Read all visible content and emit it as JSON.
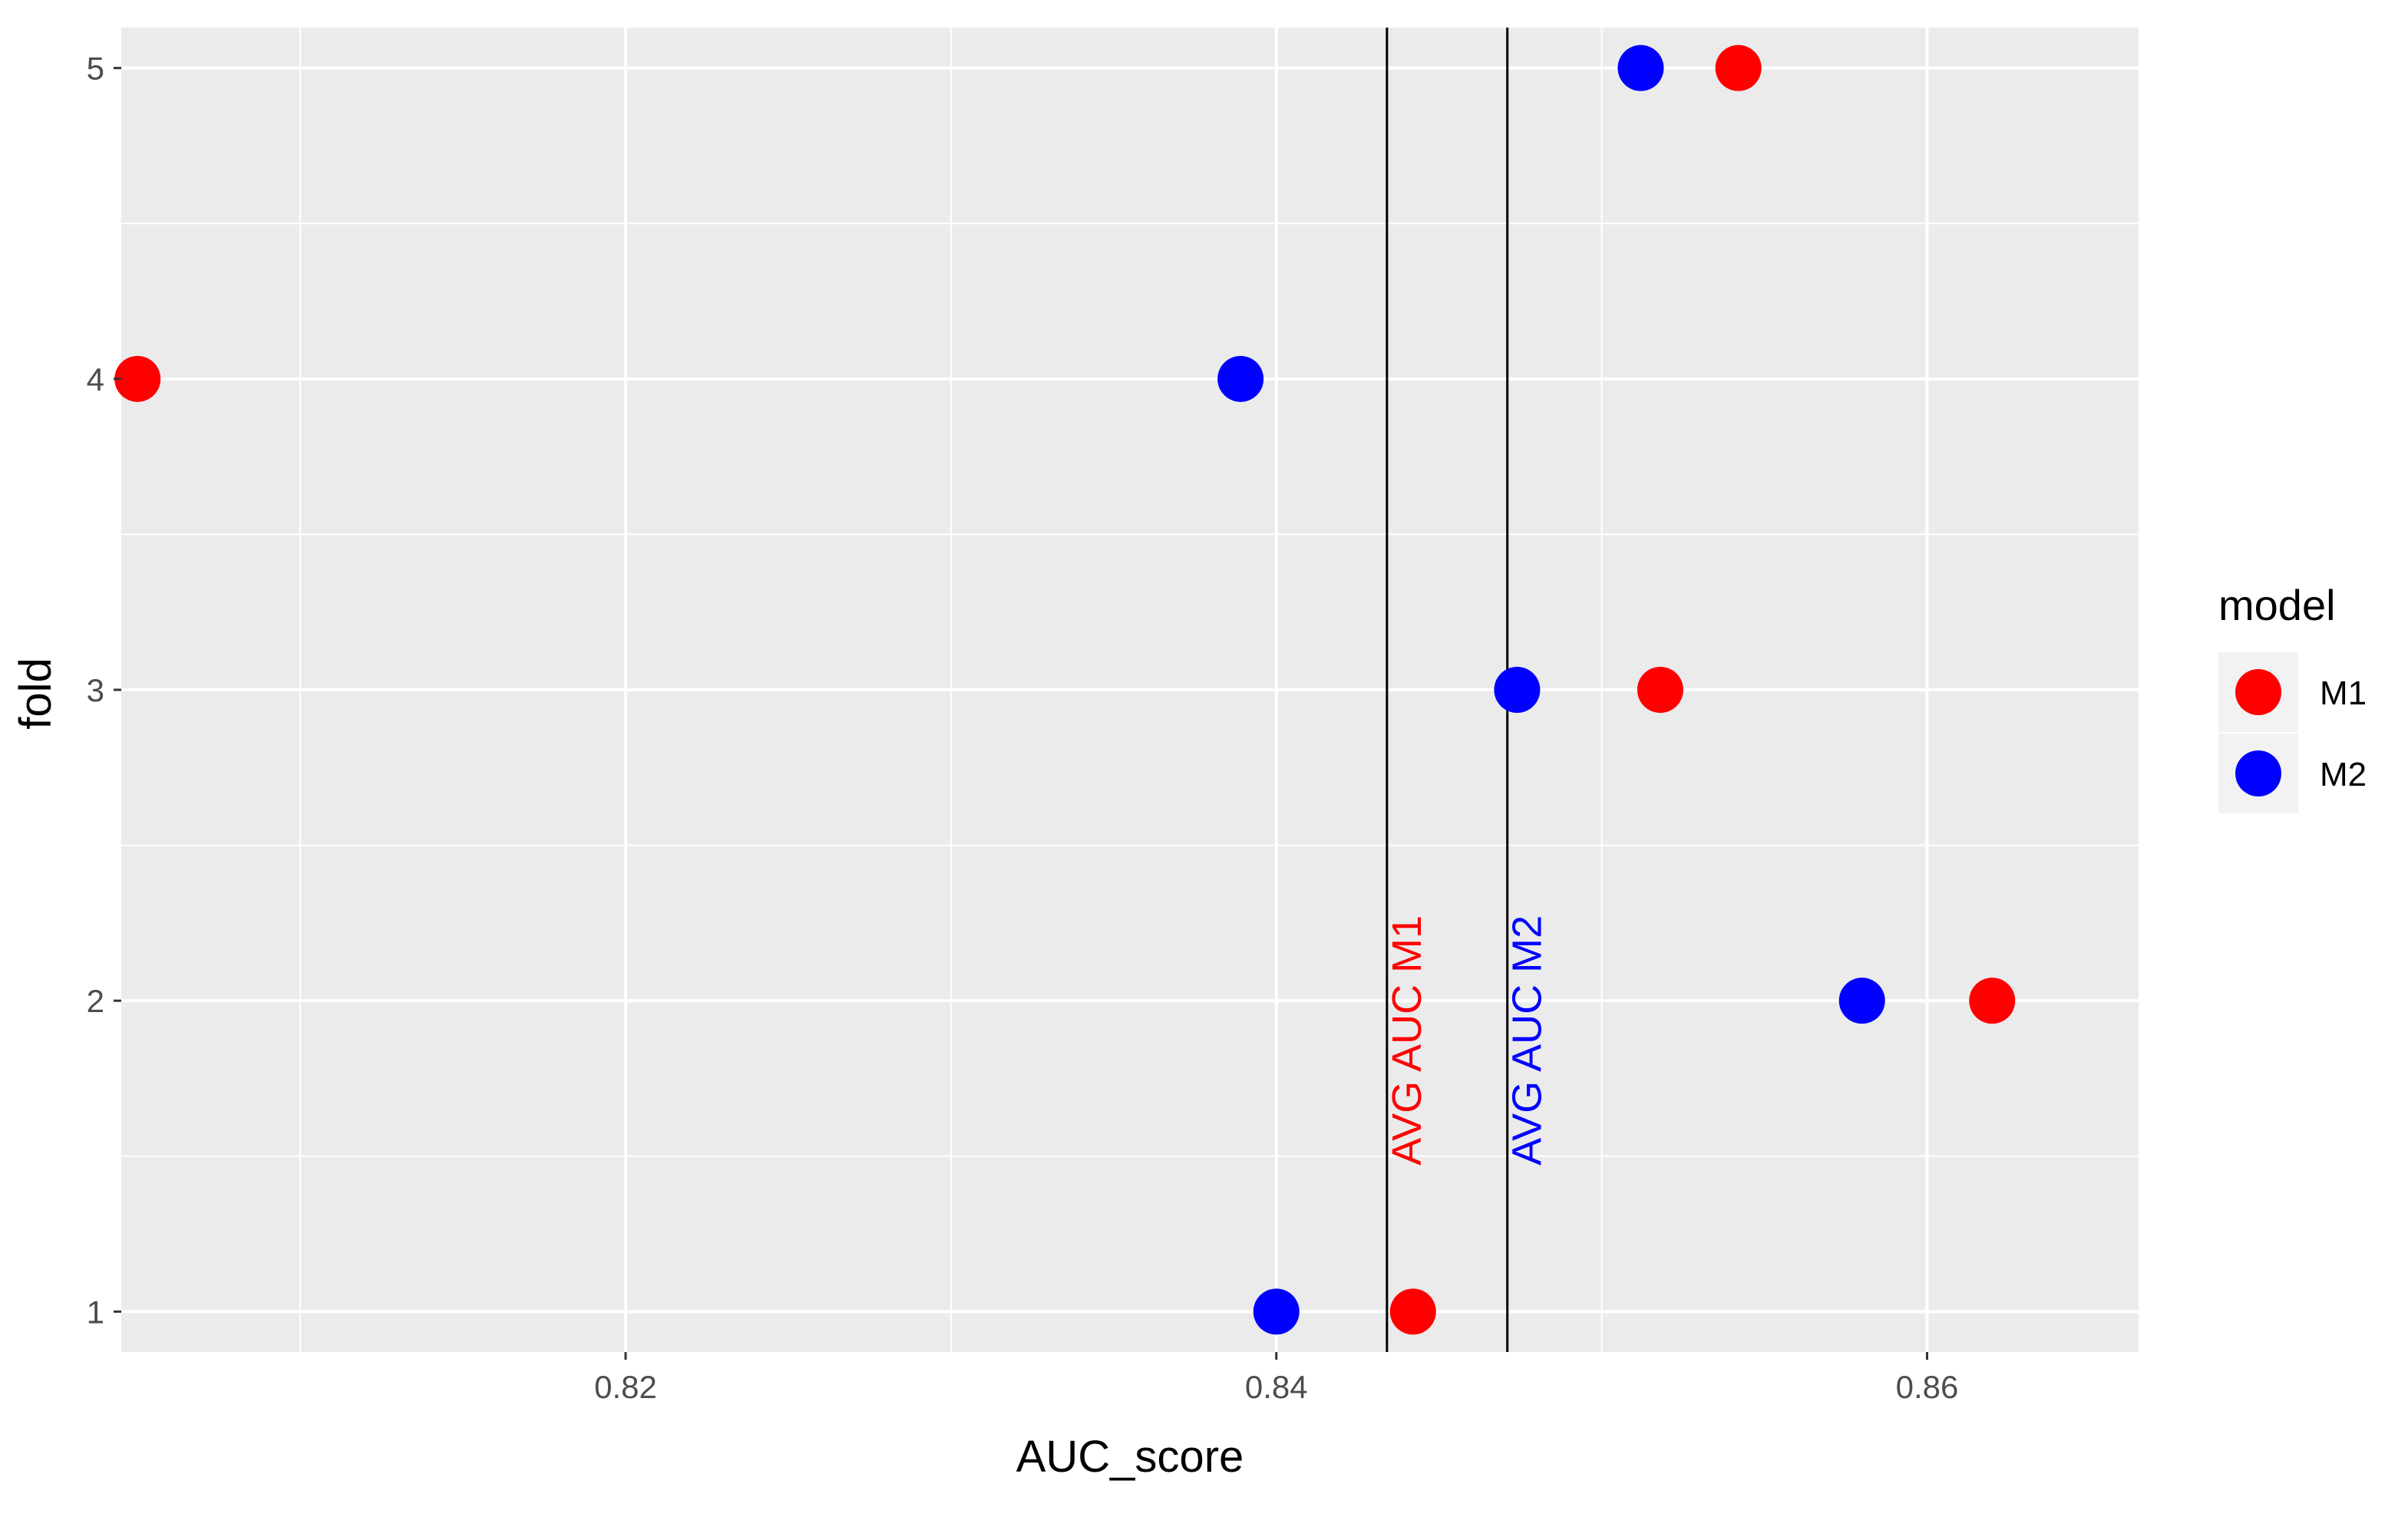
{
  "chart_data": {
    "type": "scatter",
    "xlabel": "AUC_score",
    "ylabel": "fold",
    "xlim": [
      0.8045,
      0.8665
    ],
    "ylim": [
      0.87,
      5.13
    ],
    "xticks": [
      0.82,
      0.84,
      0.86
    ],
    "xtick_labels": [
      "0.82",
      "0.84",
      "0.86"
    ],
    "xminor": [
      0.81,
      0.83,
      0.85
    ],
    "yticks": [
      1,
      2,
      3,
      4,
      5
    ],
    "ytick_labels": [
      "1",
      "2",
      "3",
      "4",
      "5"
    ],
    "yminor": [
      1.5,
      2.5,
      3.5,
      4.5
    ],
    "grid": true,
    "panel_background": "#EBEBEB",
    "legend": {
      "title": "model",
      "position": "right"
    },
    "series": [
      {
        "name": "M1",
        "color": "#FF0000",
        "x": [
          0.8442,
          0.862,
          0.8518,
          0.805,
          0.8542
        ],
        "y": [
          1,
          2,
          3,
          4,
          5
        ]
      },
      {
        "name": "M2",
        "color": "#0000FF",
        "x": [
          0.84,
          0.858,
          0.8474,
          0.8389,
          0.8512
        ],
        "y": [
          1,
          2,
          3,
          4,
          5
        ]
      }
    ],
    "vlines": [
      {
        "x": 0.8434,
        "label": "AVG AUC M1",
        "label_color": "#FF0000",
        "line_color": "#000000"
      },
      {
        "x": 0.8471,
        "label": "AVG AUC M2",
        "label_color": "#0000FF",
        "line_color": "#000000"
      }
    ]
  }
}
